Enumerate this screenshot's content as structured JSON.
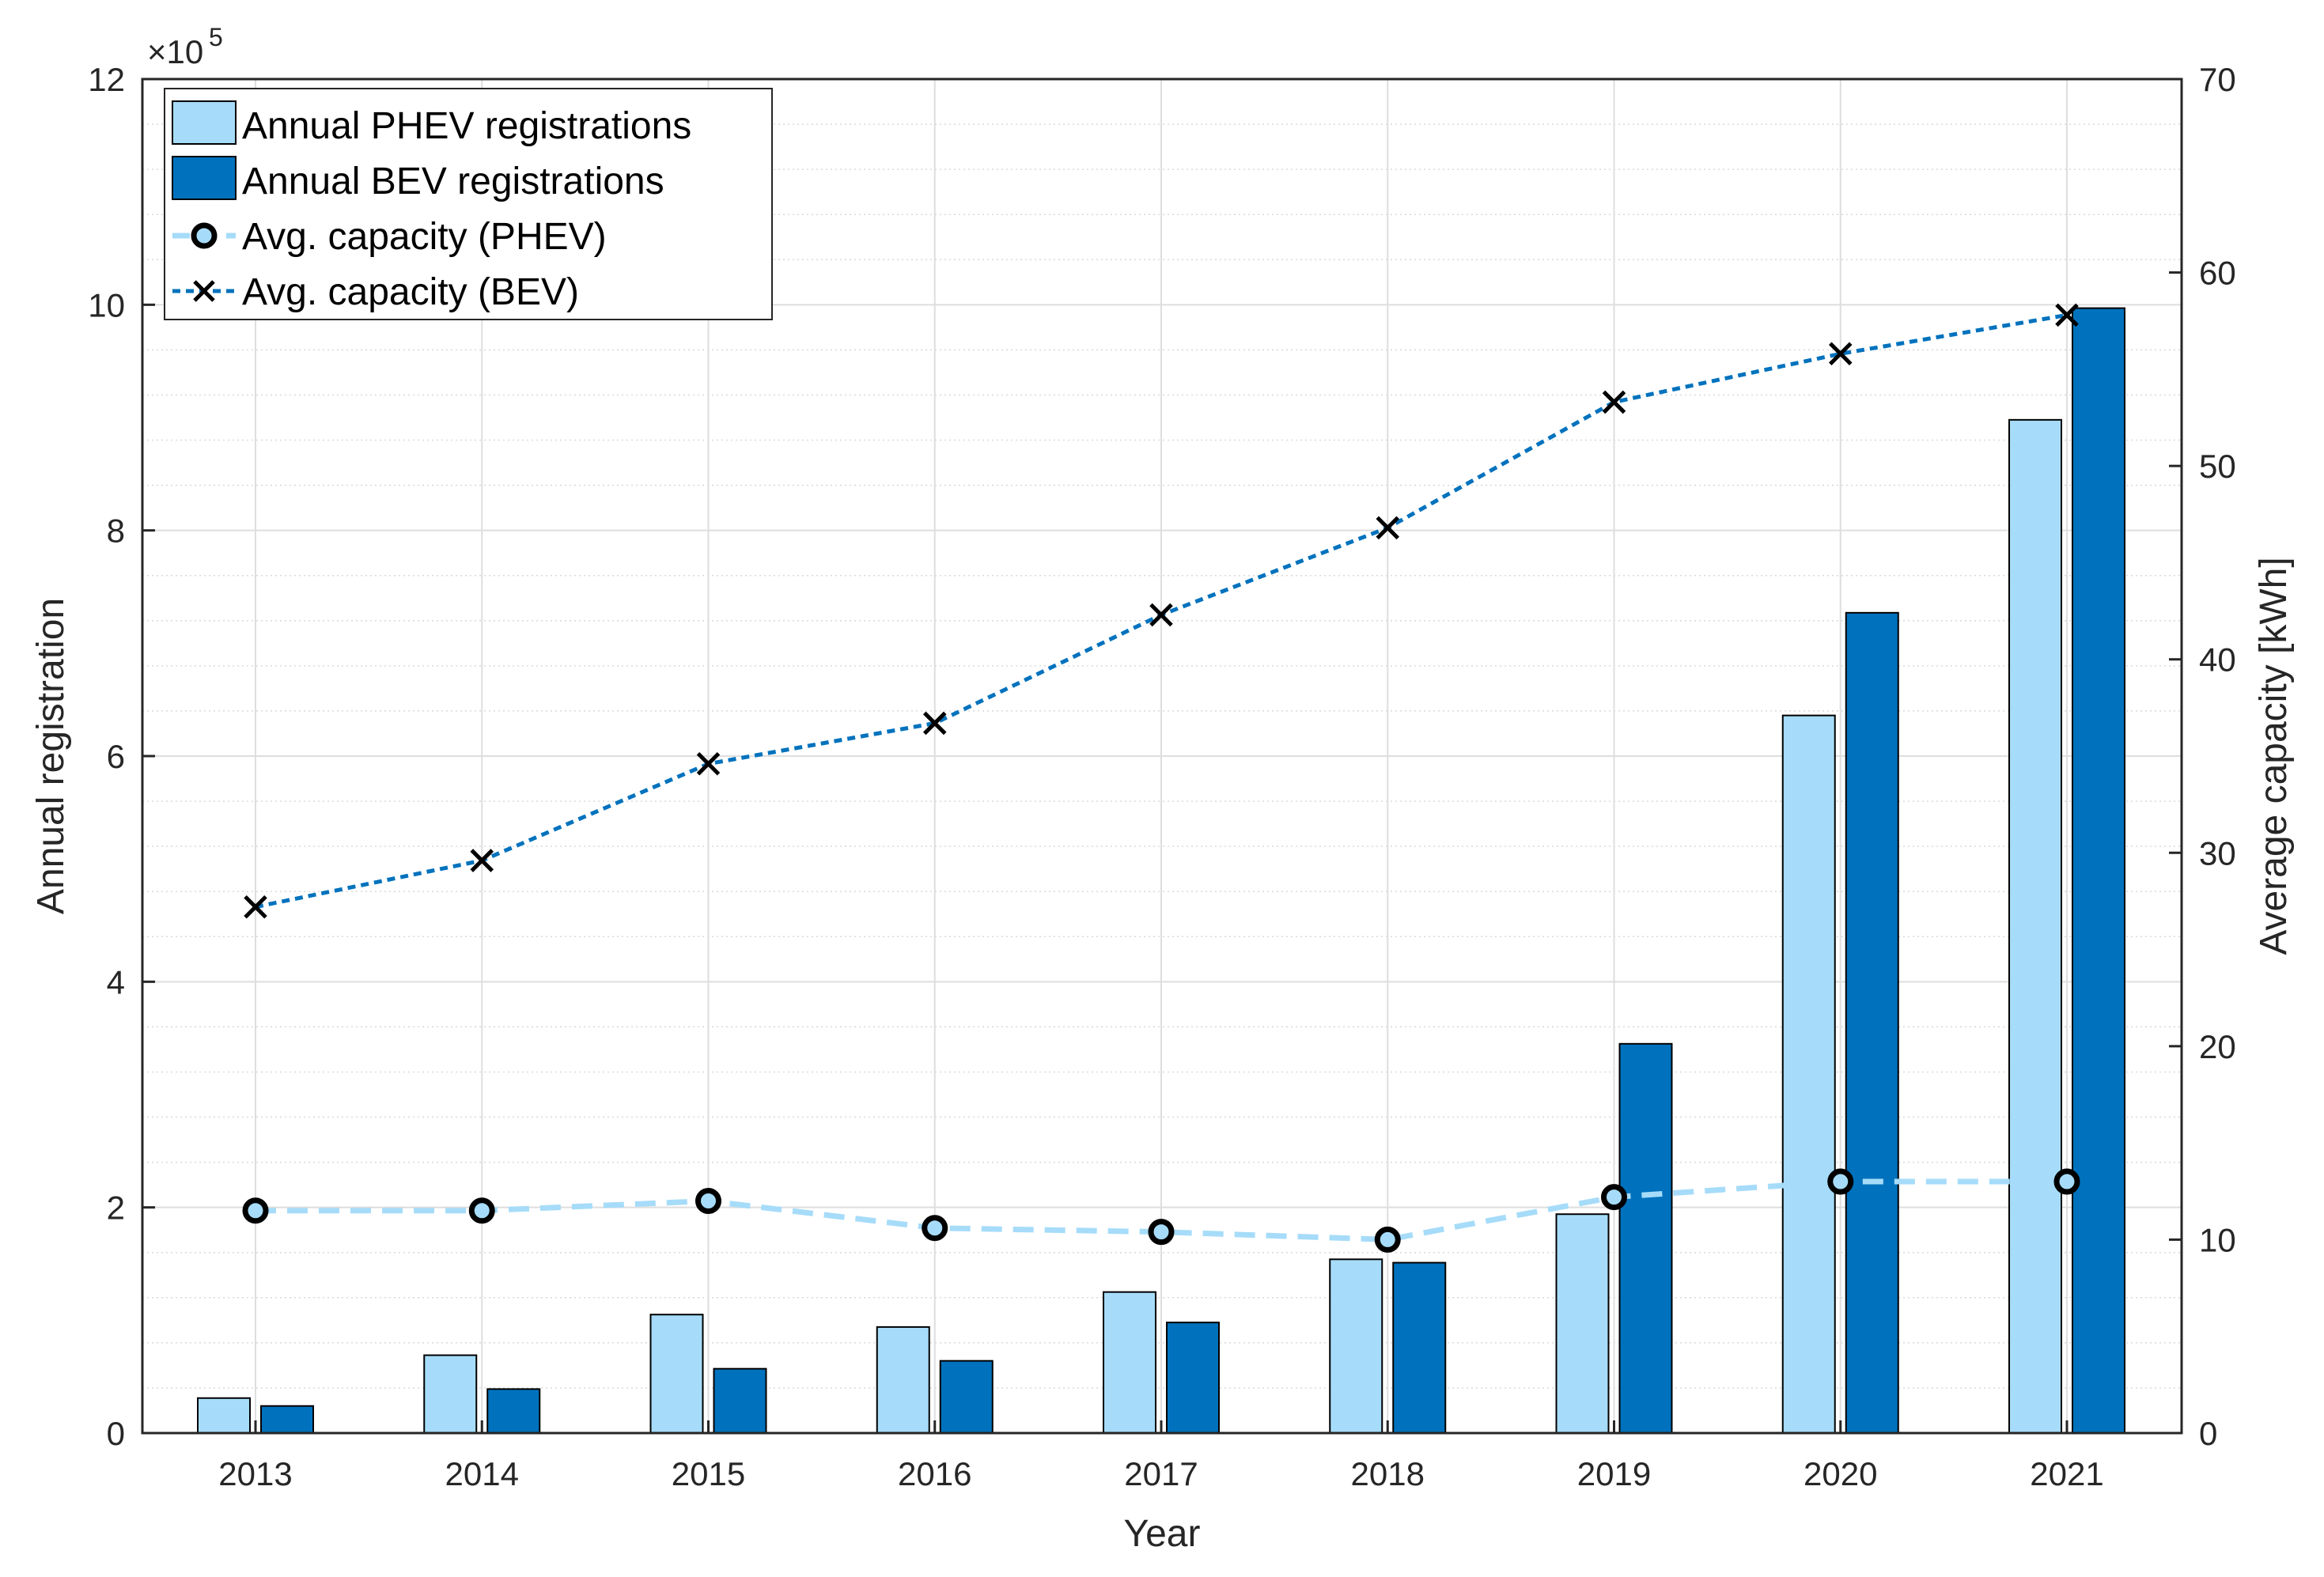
{
  "chart_data": {
    "type": "bar",
    "title": "",
    "xlabel": "Year",
    "ylabel_left": "Annual registration",
    "ylabel_right": "Average capacity [kWh]",
    "left_axis_multiplier": "×10",
    "left_axis_exponent": "5",
    "categories": [
      "2013",
      "2014",
      "2015",
      "2016",
      "2017",
      "2018",
      "2019",
      "2020",
      "2021"
    ],
    "ylim_left": [
      0,
      12
    ],
    "yticks_left": [
      0,
      2,
      4,
      6,
      8,
      10,
      12
    ],
    "ylim_right": [
      0,
      70
    ],
    "yticks_right": [
      0,
      10,
      20,
      30,
      40,
      50,
      60,
      70
    ],
    "grid": true,
    "legend_position": "top-left",
    "colors": {
      "phev": "#a6dcf9",
      "bev": "#0072bd",
      "phev_line": "#a6dcf9",
      "bev_line": "#0072bd",
      "marker": "#000000"
    },
    "series": [
      {
        "name": "Annual PHEV registrations",
        "kind": "bar",
        "axis": "left",
        "values": [
          0.31,
          0.69,
          1.05,
          0.94,
          1.25,
          1.54,
          1.94,
          6.36,
          8.98
        ]
      },
      {
        "name": "Annual BEV registrations",
        "kind": "bar",
        "axis": "left",
        "values": [
          0.24,
          0.39,
          0.57,
          0.64,
          0.98,
          1.51,
          3.45,
          7.27,
          9.97
        ]
      },
      {
        "name": "Avg. capacity (PHEV)",
        "kind": "line",
        "axis": "right",
        "values": [
          11.5,
          11.5,
          12.0,
          10.6,
          10.4,
          10.0,
          12.2,
          13.0,
          13.0
        ]
      },
      {
        "name": "Avg. capacity (BEV)",
        "kind": "line",
        "axis": "right",
        "values": [
          27.2,
          29.6,
          34.6,
          36.7,
          42.3,
          46.8,
          53.3,
          55.8,
          57.8
        ]
      }
    ]
  }
}
